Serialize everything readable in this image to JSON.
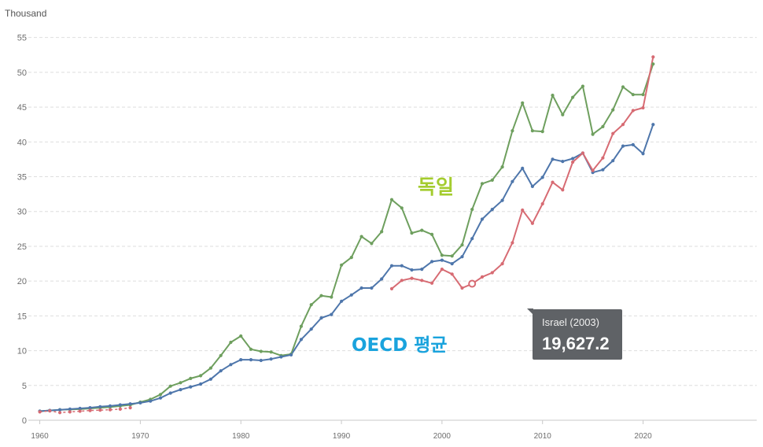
{
  "chart_data": {
    "type": "line",
    "unit_label": "Thousand",
    "ylim": [
      0,
      57
    ],
    "yticks": [
      0,
      5,
      10,
      15,
      20,
      25,
      30,
      35,
      40,
      45,
      50,
      55
    ],
    "xlim": [
      1959.8,
      2031.3
    ],
    "xticks": [
      1960,
      1970,
      1980,
      1990,
      2000,
      2010,
      2020
    ],
    "grid": true,
    "series": [
      {
        "name": "독일",
        "color": "#6e9f5e",
        "label_color": "#a4cc2e",
        "x": [
          1960,
          1961,
          1962,
          1963,
          1964,
          1965,
          1966,
          1967,
          1968,
          1969,
          1970,
          1971,
          1972,
          1973,
          1974,
          1975,
          1976,
          1977,
          1978,
          1979,
          1980,
          1981,
          1982,
          1983,
          1984,
          1985,
          1986,
          1987,
          1988,
          1989,
          1990,
          1991,
          1992,
          1993,
          1994,
          1995,
          1996,
          1997,
          1998,
          1999,
          2000,
          2001,
          2002,
          2003,
          2004,
          2005,
          2006,
          2007,
          2008,
          2009,
          2010,
          2011,
          2012,
          2013,
          2014,
          2015,
          2016,
          2017,
          2018,
          2019,
          2020,
          2021
        ],
        "values": [
          1.3,
          1.4,
          1.5,
          1.55,
          1.6,
          1.7,
          1.8,
          1.9,
          2.05,
          2.2,
          2.6,
          3.0,
          3.7,
          4.9,
          5.4,
          6.0,
          6.4,
          7.5,
          9.3,
          11.2,
          12.1,
          10.2,
          9.9,
          9.8,
          9.3,
          9.5,
          13.5,
          16.6,
          17.9,
          17.7,
          22.3,
          23.4,
          26.4,
          25.4,
          27.1,
          31.7,
          30.5,
          26.9,
          27.3,
          26.7,
          23.7,
          23.6,
          25.2,
          30.3,
          34.0,
          34.5,
          36.4,
          41.6,
          45.6,
          41.6,
          41.5,
          46.7,
          43.9,
          46.4,
          48.0,
          41.1,
          42.2,
          44.6,
          47.9,
          46.8,
          46.8,
          51.2
        ]
      },
      {
        "name": "OECD 평균",
        "color": "#4e76ab",
        "label_color": "#1aa3dd",
        "x": [
          1960,
          1961,
          1962,
          1963,
          1964,
          1965,
          1966,
          1967,
          1968,
          1969,
          1970,
          1971,
          1972,
          1973,
          1974,
          1975,
          1976,
          1977,
          1978,
          1979,
          1980,
          1981,
          1982,
          1983,
          1984,
          1985,
          1986,
          1987,
          1988,
          1989,
          1990,
          1991,
          1992,
          1993,
          1994,
          1995,
          1996,
          1997,
          1998,
          1999,
          2000,
          2001,
          2002,
          2003,
          2004,
          2005,
          2006,
          2007,
          2008,
          2009,
          2010,
          2011,
          2012,
          2013,
          2014,
          2015,
          2016,
          2017,
          2018,
          2019,
          2020,
          2021
        ],
        "values": [
          1.3,
          1.4,
          1.5,
          1.6,
          1.7,
          1.8,
          1.95,
          2.05,
          2.2,
          2.35,
          2.5,
          2.75,
          3.2,
          3.9,
          4.4,
          4.8,
          5.2,
          5.9,
          7.1,
          8.0,
          8.7,
          8.7,
          8.6,
          8.8,
          9.1,
          9.4,
          11.6,
          13.1,
          14.7,
          15.2,
          17.1,
          18.0,
          19.0,
          19.0,
          20.3,
          22.2,
          22.2,
          21.6,
          21.7,
          22.8,
          23.0,
          22.5,
          23.5,
          26.1,
          28.9,
          30.3,
          31.6,
          34.3,
          36.2,
          33.6,
          34.9,
          37.5,
          37.2,
          37.6,
          38.4,
          35.6,
          36.0,
          37.3,
          39.4,
          39.6,
          38.3,
          42.5
        ]
      },
      {
        "name": "Israel",
        "color": "#d76b73",
        "label_color": "#d76b73",
        "x": [
          1960,
          1961,
          1962,
          1963,
          1964,
          1965,
          1966,
          1967,
          1968,
          1969,
          1995,
          1996,
          1997,
          1998,
          1999,
          2000,
          2001,
          2002,
          2003,
          2004,
          2005,
          2006,
          2007,
          2008,
          2009,
          2010,
          2011,
          2012,
          2013,
          2014,
          2015,
          2016,
          2017,
          2018,
          2019,
          2020,
          2021
        ],
        "values": [
          1.2,
          1.35,
          1.1,
          1.2,
          1.3,
          1.4,
          1.45,
          1.5,
          1.6,
          1.8,
          18.9,
          20.1,
          20.4,
          20.1,
          19.7,
          21.7,
          21.0,
          19.0,
          19.6,
          20.6,
          21.2,
          22.5,
          25.5,
          30.2,
          28.3,
          31.1,
          34.2,
          33.1,
          37.1,
          38.4,
          35.9,
          37.7,
          41.2,
          42.5,
          44.5,
          44.9,
          52.2
        ]
      }
    ],
    "highlight": {
      "series": "Israel",
      "x": 2003,
      "value": 19.6272
    }
  },
  "labels": {
    "germany": "독일",
    "oecd": "OECD 평균"
  },
  "tooltip": {
    "title": "Israel (2003)",
    "value": "19,627.2"
  }
}
